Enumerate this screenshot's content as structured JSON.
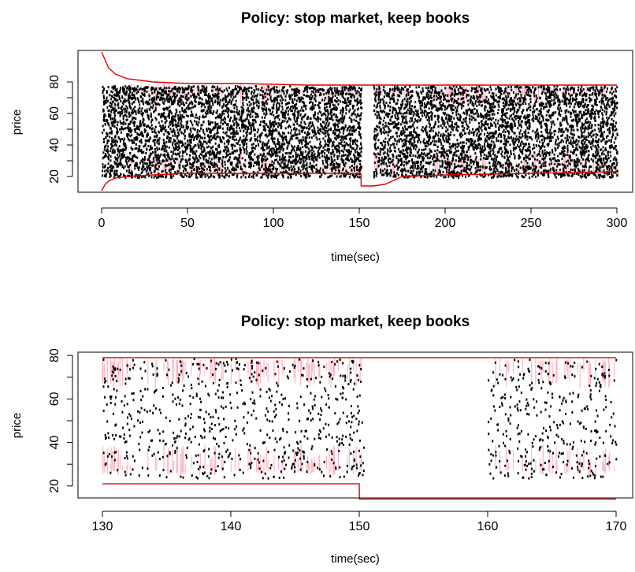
{
  "chart_data": [
    {
      "type": "scatter",
      "title": "Policy: stop market, keep books",
      "xlabel": "time(sec)",
      "ylabel": "price",
      "xlim": [
        0,
        300
      ],
      "ylim": [
        10,
        100
      ],
      "x_ticks": [
        "0",
        "50",
        "100",
        "150",
        "200",
        "250",
        "300"
      ],
      "y_ticks": [
        "20",
        "40",
        "60",
        "80"
      ],
      "gap": [
        151,
        158
      ],
      "colors": {
        "points": "#000000",
        "limits": "#dd0000",
        "quotes": "#ffb6c1"
      },
      "series": [
        {
          "x": [
            0,
            2,
            4,
            8,
            15,
            30,
            50,
            80,
            120,
            151,
            151.1,
            158,
            170,
            200,
            250,
            300
          ],
          "values": [
            99,
            94,
            89,
            85,
            82,
            80,
            79,
            79,
            78,
            78,
            78,
            78,
            78,
            78,
            78,
            78
          ]
        },
        {
          "x": [
            0,
            2,
            4,
            8,
            15,
            30,
            50,
            80,
            120,
            151,
            151.1,
            158,
            165,
            175,
            200,
            250,
            300
          ],
          "values": [
            11,
            15,
            17,
            19,
            20,
            21,
            22,
            22,
            22,
            22,
            14,
            14,
            15,
            20,
            21,
            22,
            23
          ]
        }
      ]
    },
    {
      "type": "scatter",
      "title": "Policy: stop market, keep books",
      "xlabel": "time(sec)",
      "ylabel": "price",
      "xlim": [
        130,
        170
      ],
      "ylim": [
        15,
        80
      ],
      "x_ticks": [
        "130",
        "140",
        "150",
        "160",
        "170"
      ],
      "y_ticks": [
        "20",
        "40",
        "60",
        "80"
      ],
      "gap": [
        150.3,
        160
      ],
      "colors": {
        "points": "#000000",
        "limits": "#dd0000",
        "quotes": "#ffb6c1"
      },
      "series": [
        {
          "x": [
            130,
            150,
            160,
            170
          ],
          "values": [
            79,
            79,
            79,
            79
          ]
        },
        {
          "x": [
            130,
            150,
            150.01,
            170
          ],
          "values": [
            21,
            21,
            14,
            14
          ]
        }
      ]
    }
  ]
}
